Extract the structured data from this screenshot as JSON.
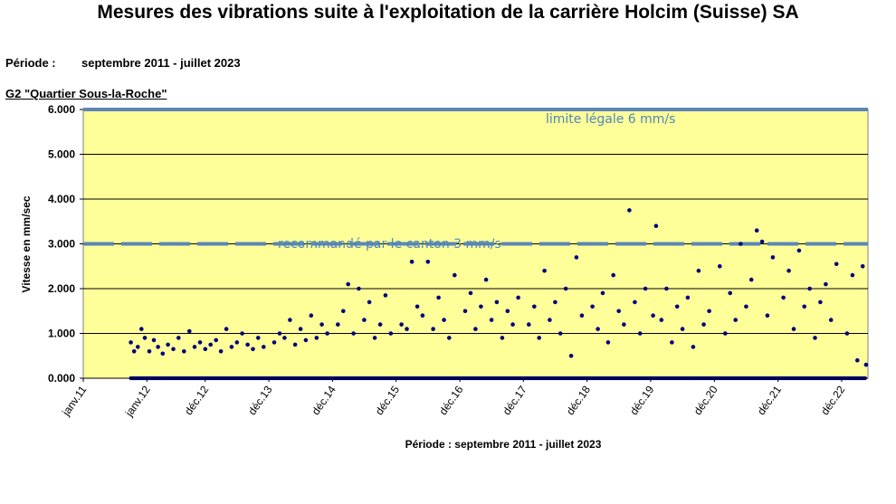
{
  "header": {
    "title": "Mesures des vibrations suite à l'exploitation de la carrière Holcim (Suisse) SA",
    "period_label": "Période :",
    "period_value": "septembre 2011 -  juillet 2023",
    "station": "G2 \"Quartier Sous-la-Roche\""
  },
  "chart_data": {
    "type": "scatter",
    "ylabel": "Vitesse en mm/sec",
    "xlabel": "Période : septembre 2011 - juillet 2023",
    "ylim": [
      0,
      6
    ],
    "yticks": [
      "0.000",
      "1.000",
      "2.000",
      "3.000",
      "4.000",
      "5.000",
      "6.000"
    ],
    "xlim": [
      "2011-01-01",
      "2023-05-01"
    ],
    "xticks": [
      {
        "date": "2011-01-01",
        "label": "janv.11"
      },
      {
        "date": "2012-01-01",
        "label": "janv.12"
      },
      {
        "date": "2012-12-01",
        "label": "déc.12"
      },
      {
        "date": "2013-12-01",
        "label": "déc.13"
      },
      {
        "date": "2014-12-01",
        "label": "déc.14"
      },
      {
        "date": "2015-12-01",
        "label": "déc.15"
      },
      {
        "date": "2016-12-01",
        "label": "déc.16"
      },
      {
        "date": "2017-12-01",
        "label": "déc.17"
      },
      {
        "date": "2018-12-01",
        "label": "déc.18"
      },
      {
        "date": "2019-12-01",
        "label": "déc.19"
      },
      {
        "date": "2020-12-01",
        "label": "déc.20"
      },
      {
        "date": "2021-12-01",
        "label": "déc.21"
      },
      {
        "date": "2022-12-01",
        "label": "déc.22"
      }
    ],
    "reference_lines": [
      {
        "value": 6,
        "label": "limite légale 6 mm/s",
        "style": "solid",
        "color": "#5b86b6"
      },
      {
        "value": 3,
        "label": "recommandé par le canton 3 mm/s",
        "style": "dashed",
        "color": "#5b86b6"
      }
    ],
    "plot_background": "#ffff99",
    "marker_color": "#000080",
    "grid": true,
    "series": [
      {
        "points": [
          [
            "2011-10-01",
            0.8
          ],
          [
            "2011-10-20",
            0.6
          ],
          [
            "2011-11-10",
            0.7
          ],
          [
            "2011-12-01",
            1.1
          ],
          [
            "2011-12-20",
            0.9
          ],
          [
            "2012-01-15",
            0.6
          ],
          [
            "2012-02-10",
            0.85
          ],
          [
            "2012-03-05",
            0.7
          ],
          [
            "2012-04-01",
            0.55
          ],
          [
            "2012-05-01",
            0.75
          ],
          [
            "2012-06-01",
            0.65
          ],
          [
            "2012-07-01",
            0.9
          ],
          [
            "2012-08-01",
            0.6
          ],
          [
            "2012-09-01",
            1.05
          ],
          [
            "2012-10-01",
            0.7
          ],
          [
            "2012-11-01",
            0.8
          ],
          [
            "2012-12-01",
            0.65
          ],
          [
            "2013-01-01",
            0.75
          ],
          [
            "2013-02-01",
            0.85
          ],
          [
            "2013-03-01",
            0.6
          ],
          [
            "2013-04-01",
            1.1
          ],
          [
            "2013-05-01",
            0.7
          ],
          [
            "2013-06-01",
            0.8
          ],
          [
            "2013-07-01",
            1.0
          ],
          [
            "2013-08-01",
            0.75
          ],
          [
            "2013-09-01",
            0.65
          ],
          [
            "2013-10-01",
            0.9
          ],
          [
            "2013-11-01",
            0.7
          ],
          [
            "2014-01-01",
            0.8
          ],
          [
            "2014-02-01",
            1.0
          ],
          [
            "2014-03-01",
            0.9
          ],
          [
            "2014-04-01",
            1.3
          ],
          [
            "2014-05-01",
            0.75
          ],
          [
            "2014-06-01",
            1.1
          ],
          [
            "2014-07-01",
            0.85
          ],
          [
            "2014-08-01",
            1.4
          ],
          [
            "2014-09-01",
            0.9
          ],
          [
            "2014-10-01",
            1.2
          ],
          [
            "2014-11-01",
            1.0
          ],
          [
            "2015-01-01",
            1.2
          ],
          [
            "2015-02-01",
            1.5
          ],
          [
            "2015-03-01",
            2.1
          ],
          [
            "2015-04-01",
            1.0
          ],
          [
            "2015-05-01",
            2.0
          ],
          [
            "2015-06-01",
            1.3
          ],
          [
            "2015-07-01",
            1.7
          ],
          [
            "2015-08-01",
            0.9
          ],
          [
            "2015-09-01",
            1.2
          ],
          [
            "2015-10-01",
            1.85
          ],
          [
            "2015-11-01",
            1.0
          ],
          [
            "2016-01-01",
            1.2
          ],
          [
            "2016-02-01",
            1.1
          ],
          [
            "2016-03-01",
            2.6
          ],
          [
            "2016-04-01",
            1.6
          ],
          [
            "2016-05-01",
            1.4
          ],
          [
            "2016-06-01",
            2.6
          ],
          [
            "2016-07-01",
            1.1
          ],
          [
            "2016-08-01",
            1.8
          ],
          [
            "2016-09-01",
            1.3
          ],
          [
            "2016-10-01",
            0.9
          ],
          [
            "2016-11-01",
            2.3
          ],
          [
            "2017-01-01",
            1.5
          ],
          [
            "2017-02-01",
            1.9
          ],
          [
            "2017-03-01",
            1.1
          ],
          [
            "2017-04-01",
            1.6
          ],
          [
            "2017-05-01",
            2.2
          ],
          [
            "2017-06-01",
            1.3
          ],
          [
            "2017-07-01",
            1.7
          ],
          [
            "2017-08-01",
            0.9
          ],
          [
            "2017-09-01",
            1.5
          ],
          [
            "2017-10-01",
            1.2
          ],
          [
            "2017-11-01",
            1.8
          ],
          [
            "2018-01-01",
            1.2
          ],
          [
            "2018-02-01",
            1.6
          ],
          [
            "2018-03-01",
            0.9
          ],
          [
            "2018-04-01",
            2.4
          ],
          [
            "2018-05-01",
            1.3
          ],
          [
            "2018-06-01",
            1.7
          ],
          [
            "2018-07-01",
            1.0
          ],
          [
            "2018-08-01",
            2.0
          ],
          [
            "2018-09-01",
            0.5
          ],
          [
            "2018-10-01",
            2.7
          ],
          [
            "2018-11-01",
            1.4
          ],
          [
            "2019-01-01",
            1.6
          ],
          [
            "2019-02-01",
            1.1
          ],
          [
            "2019-03-01",
            1.9
          ],
          [
            "2019-04-01",
            0.8
          ],
          [
            "2019-05-01",
            2.3
          ],
          [
            "2019-06-01",
            1.5
          ],
          [
            "2019-07-01",
            1.2
          ],
          [
            "2019-08-01",
            3.75
          ],
          [
            "2019-09-01",
            1.7
          ],
          [
            "2019-10-01",
            1.0
          ],
          [
            "2019-11-01",
            2.0
          ],
          [
            "2019-12-15",
            1.4
          ],
          [
            "2020-01-01",
            3.4
          ],
          [
            "2020-02-01",
            1.3
          ],
          [
            "2020-03-01",
            2.0
          ],
          [
            "2020-04-01",
            0.8
          ],
          [
            "2020-05-01",
            1.6
          ],
          [
            "2020-06-01",
            1.1
          ],
          [
            "2020-07-01",
            1.8
          ],
          [
            "2020-08-01",
            0.7
          ],
          [
            "2020-09-01",
            2.4
          ],
          [
            "2020-10-01",
            1.2
          ],
          [
            "2020-11-01",
            1.5
          ],
          [
            "2021-01-01",
            2.5
          ],
          [
            "2021-02-01",
            1.0
          ],
          [
            "2021-03-01",
            1.9
          ],
          [
            "2021-04-01",
            1.3
          ],
          [
            "2021-05-01",
            3.0
          ],
          [
            "2021-06-01",
            1.6
          ],
          [
            "2021-07-01",
            2.2
          ],
          [
            "2021-08-01",
            3.3
          ],
          [
            "2021-09-01",
            3.05
          ],
          [
            "2021-10-01",
            1.4
          ],
          [
            "2021-11-01",
            2.7
          ],
          [
            "2022-01-01",
            1.8
          ],
          [
            "2022-02-01",
            2.4
          ],
          [
            "2022-03-01",
            1.1
          ],
          [
            "2022-04-01",
            2.85
          ],
          [
            "2022-05-01",
            1.6
          ],
          [
            "2022-06-01",
            2.0
          ],
          [
            "2022-07-01",
            0.9
          ],
          [
            "2022-08-01",
            1.7
          ],
          [
            "2022-09-01",
            2.1
          ],
          [
            "2022-10-01",
            1.3
          ],
          [
            "2022-11-01",
            2.55
          ],
          [
            "2023-01-01",
            1.0
          ],
          [
            "2023-02-01",
            2.3
          ],
          [
            "2023-03-01",
            0.4
          ],
          [
            "2023-04-01",
            2.5
          ],
          [
            "2023-04-20",
            0.3
          ]
        ],
        "zero_readings_from": "2011-10-01",
        "zero_readings_to": "2023-04-20",
        "zero_value": 0
      }
    ]
  }
}
